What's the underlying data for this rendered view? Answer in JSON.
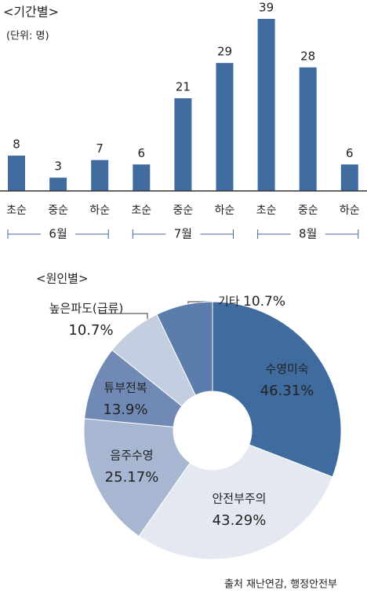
{
  "chart_data": [
    {
      "type": "bar",
      "title": "<기간별>",
      "subtitle": "(단위: 명)",
      "categories": [
        "초순",
        "중순",
        "하순",
        "초순",
        "중순",
        "하순",
        "초순",
        "중순",
        "하순"
      ],
      "groups": [
        "6월",
        "7월",
        "8월"
      ],
      "values": [
        8,
        3,
        7,
        6,
        21,
        29,
        39,
        28,
        6
      ],
      "color": "#3f6b9f"
    },
    {
      "type": "donut",
      "title": "<원인별>",
      "categories": [
        "수영미숙",
        "안전부주의",
        "음주수영",
        "튜부전복",
        "높은파도(급류)",
        "기타"
      ],
      "values": [
        46.31,
        43.29,
        25.17,
        13.9,
        10.7,
        10.7
      ],
      "value_labels": [
        "46.31%",
        "43.29%",
        "25.17%",
        "13.9%",
        "10.7%",
        "10.7%"
      ],
      "colors": [
        "#3f6b9f",
        "#e4e9f1",
        "#a7b6d1",
        "#7189b5",
        "#c4cee1",
        "#5b7dac"
      ]
    }
  ],
  "source": "출처 재난연감, 행정안전부"
}
